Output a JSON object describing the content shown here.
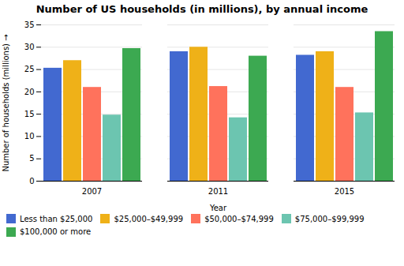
{
  "chart_data": {
    "type": "bar",
    "title": "Number of US households (in millions), by annual income",
    "xlabel": "Year",
    "ylabel": "Number of households (millions)",
    "categories": [
      "2007",
      "2011",
      "2015"
    ],
    "series": [
      {
        "name": "Less than $25,000",
        "values": [
          25.3,
          29.0,
          28.2
        ]
      },
      {
        "name": "$25,000–$49,999",
        "values": [
          27.0,
          30.0,
          29.0
        ]
      },
      {
        "name": "$50,000–$74,999",
        "values": [
          21.0,
          21.2,
          21.0
        ]
      },
      {
        "name": "$75,000–$99,999",
        "values": [
          14.8,
          14.2,
          15.3
        ]
      },
      {
        "name": "$100,000 or more",
        "values": [
          29.7,
          28.0,
          33.5
        ]
      }
    ],
    "ylim": [
      0,
      35
    ],
    "yticks": [
      0,
      5,
      10,
      15,
      20,
      25,
      30,
      35
    ],
    "grid": true,
    "legend": "bottom"
  }
}
